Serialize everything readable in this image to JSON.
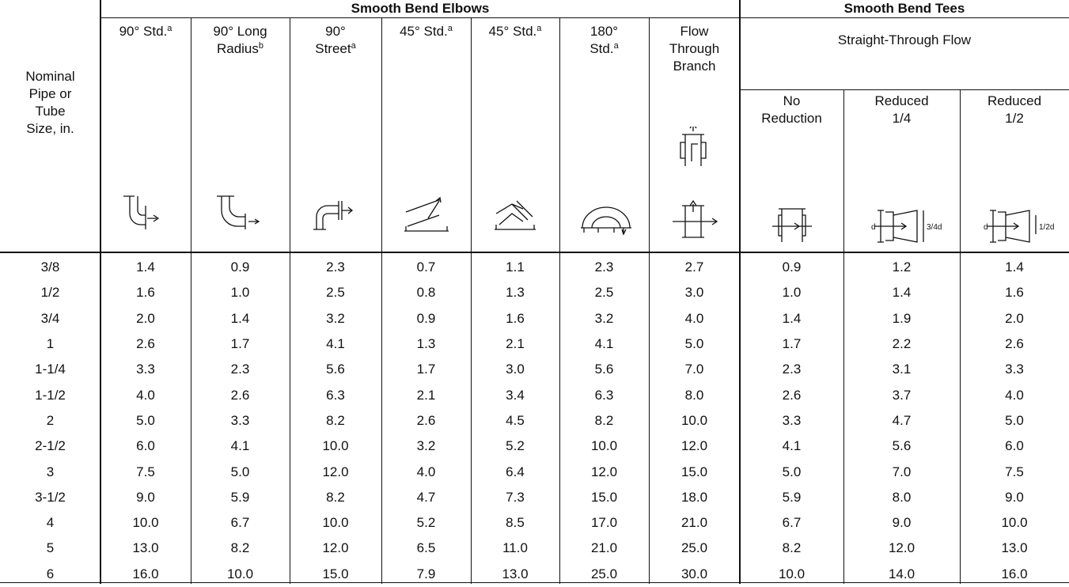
{
  "header": {
    "size_column": {
      "lines": [
        "Nominal",
        "Pipe or",
        "Tube",
        "Size, in."
      ]
    },
    "group_elbows": "Smooth Bend Elbows",
    "group_tees": "Smooth Bend Tees",
    "subgroup_tees": "Straight-Through Flow",
    "columns": [
      {
        "lines": [
          "90° Std."
        ],
        "sup": "a"
      },
      {
        "lines": [
          "90° Long",
          "Radius"
        ],
        "sup": "b"
      },
      {
        "lines": [
          "90°",
          "Street"
        ],
        "sup": "a"
      },
      {
        "lines": [
          "45° Std."
        ],
        "sup": "a"
      },
      {
        "lines": [
          "45° Std."
        ],
        "sup": "a"
      },
      {
        "lines": [
          "180°",
          "Std."
        ],
        "sup": "a"
      },
      {
        "lines": [
          "Flow",
          "Through",
          "Branch"
        ]
      },
      {
        "lines": [
          "No",
          "Reduction"
        ]
      },
      {
        "lines": [
          "Reduced",
          "1/4"
        ],
        "icon_labels": [
          "d",
          "3/4d"
        ]
      },
      {
        "lines": [
          "Reduced",
          "1/2"
        ],
        "icon_labels": [
          "d",
          "1/2d"
        ]
      }
    ]
  },
  "table": {
    "rows": [
      [
        "3/8",
        "1.4",
        "0.9",
        "2.3",
        "0.7",
        "1.1",
        "2.3",
        "2.7",
        "0.9",
        "1.2",
        "1.4"
      ],
      [
        "1/2",
        "1.6",
        "1.0",
        "2.5",
        "0.8",
        "1.3",
        "2.5",
        "3.0",
        "1.0",
        "1.4",
        "1.6"
      ],
      [
        "3/4",
        "2.0",
        "1.4",
        "3.2",
        "0.9",
        "1.6",
        "3.2",
        "4.0",
        "1.4",
        "1.9",
        "2.0"
      ],
      [
        "1",
        "2.6",
        "1.7",
        "4.1",
        "1.3",
        "2.1",
        "4.1",
        "5.0",
        "1.7",
        "2.2",
        "2.6"
      ],
      [
        "1-1/4",
        "3.3",
        "2.3",
        "5.6",
        "1.7",
        "3.0",
        "5.6",
        "7.0",
        "2.3",
        "3.1",
        "3.3"
      ],
      [
        "1-1/2",
        "4.0",
        "2.6",
        "6.3",
        "2.1",
        "3.4",
        "6.3",
        "8.0",
        "2.6",
        "3.7",
        "4.0"
      ],
      [
        "2",
        "5.0",
        "3.3",
        "8.2",
        "2.6",
        "4.5",
        "8.2",
        "10.0",
        "3.3",
        "4.7",
        "5.0"
      ],
      [
        "2-1/2",
        "6.0",
        "4.1",
        "10.0",
        "3.2",
        "5.2",
        "10.0",
        "12.0",
        "4.1",
        "5.6",
        "6.0"
      ],
      [
        "3",
        "7.5",
        "5.0",
        "12.0",
        "4.0",
        "6.4",
        "12.0",
        "15.0",
        "5.0",
        "7.0",
        "7.5"
      ],
      [
        "3-1/2",
        "9.0",
        "5.9",
        "8.2",
        "4.7",
        "7.3",
        "15.0",
        "18.0",
        "5.9",
        "8.0",
        "9.0"
      ],
      [
        "4",
        "10.0",
        "6.7",
        "10.0",
        "5.2",
        "8.5",
        "17.0",
        "21.0",
        "6.7",
        "9.0",
        "10.0"
      ],
      [
        "5",
        "13.0",
        "8.2",
        "12.0",
        "6.5",
        "11.0",
        "21.0",
        "25.0",
        "8.2",
        "12.0",
        "13.0"
      ],
      [
        "6",
        "16.0",
        "10.0",
        "15.0",
        "7.9",
        "13.0",
        "25.0",
        "30.0",
        "10.0",
        "14.0",
        "16.0"
      ]
    ]
  }
}
